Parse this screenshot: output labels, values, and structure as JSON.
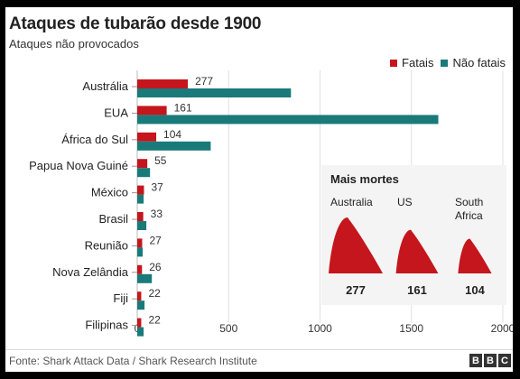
{
  "chart_data": {
    "type": "bar",
    "orientation": "horizontal",
    "title": "Ataques de tubarão desde 1900",
    "subtitle": "Ataques não provocados",
    "categories": [
      "Austrália",
      "EUA",
      "África do Sul",
      "Papua Nova Guiné",
      "México",
      "Brasil",
      "Reunião",
      "Nova Zelândia",
      "Fiji",
      "Filipinas"
    ],
    "series": [
      {
        "name": "Fatais",
        "color": "#c4161c",
        "values": [
          277,
          161,
          104,
          55,
          37,
          33,
          27,
          26,
          22,
          22
        ]
      },
      {
        "name": "Não fatais",
        "color": "#1a7a7a",
        "values": [
          841,
          1647,
          402,
          70,
          35,
          50,
          30,
          80,
          40,
          35
        ]
      }
    ],
    "data_labels_series": "Fatais",
    "xlim": [
      0,
      2000
    ],
    "xticks": [
      0,
      500,
      1000,
      1500,
      2000
    ],
    "grid": true,
    "legend": "top-right",
    "inset": {
      "title": "Mais mortes",
      "items": [
        {
          "label": "Australia",
          "value": "277"
        },
        {
          "label": "US",
          "value": "161"
        },
        {
          "label": "South Africa",
          "value": "104"
        }
      ],
      "icon": "shark-fin-icon",
      "color": "#c4161c"
    }
  },
  "footer": {
    "source": "Fonte: Shark Attack Data / Shark Research Institute",
    "logo": [
      "B",
      "B",
      "C"
    ]
  }
}
